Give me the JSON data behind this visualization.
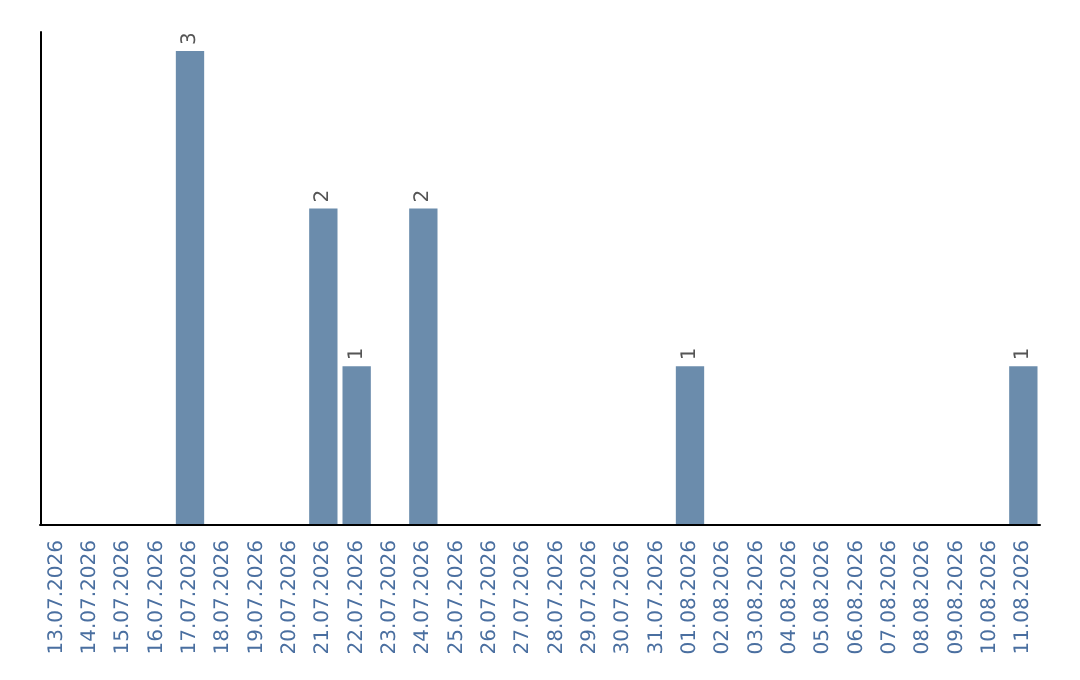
{
  "chart_data": {
    "type": "bar",
    "categories": [
      "13.07.2026",
      "14.07.2026",
      "15.07.2026",
      "16.07.2026",
      "17.07.2026",
      "18.07.2026",
      "19.07.2026",
      "20.07.2026",
      "21.07.2026",
      "22.07.2026",
      "23.07.2026",
      "24.07.2026",
      "25.07.2026",
      "26.07.2026",
      "27.07.2026",
      "28.07.2026",
      "29.07.2026",
      "30.07.2026",
      "31.07.2026",
      "01.08.2026",
      "02.08.2026",
      "03.08.2026",
      "04.08.2026",
      "05.08.2026",
      "06.08.2026",
      "07.08.2026",
      "08.08.2026",
      "09.08.2026",
      "10.08.2026",
      "11.08.2026"
    ],
    "values": [
      0,
      0,
      0,
      0,
      3,
      0,
      0,
      0,
      2,
      1,
      0,
      2,
      0,
      0,
      0,
      0,
      0,
      0,
      0,
      1,
      0,
      0,
      0,
      0,
      0,
      0,
      0,
      0,
      0,
      1
    ],
    "value_labels": [
      null,
      null,
      null,
      null,
      "3",
      null,
      null,
      null,
      "2",
      "1",
      null,
      "2",
      null,
      null,
      null,
      null,
      null,
      null,
      null,
      "1",
      null,
      null,
      null,
      null,
      null,
      null,
      null,
      null,
      null,
      "1"
    ],
    "color": "#6b8cac",
    "grid": false,
    "tick_labels": "x"
  }
}
